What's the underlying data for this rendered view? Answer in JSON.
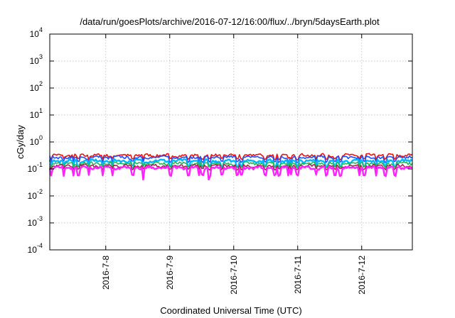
{
  "chart_data": {
    "type": "line",
    "title": "/data/run/goesPlots/archive/2016-07-12/16:00/flux/../bryn/5daysEarth.plot",
    "xlabel": "Coordinated Universal Time (UTC)",
    "ylabel": "cGy/day",
    "yscale": "log",
    "ylim": [
      0.0001,
      10000
    ],
    "y_ticks": [
      {
        "base": "10",
        "exp": "-4",
        "value": 0.0001
      },
      {
        "base": "10",
        "exp": "-3",
        "value": 0.001
      },
      {
        "base": "10",
        "exp": "-2",
        "value": 0.01
      },
      {
        "base": "10",
        "exp": "-1",
        "value": 0.1
      },
      {
        "base": "10",
        "exp": "0",
        "value": 1
      },
      {
        "base": "10",
        "exp": "1",
        "value": 10
      },
      {
        "base": "10",
        "exp": "2",
        "value": 100
      },
      {
        "base": "10",
        "exp": "3",
        "value": 1000
      },
      {
        "base": "10",
        "exp": "4",
        "value": 10000
      }
    ],
    "xlim": [
      "2016-07-07 03:00",
      "2016-07-12 19:00"
    ],
    "x_ticks": [
      {
        "label": "2016-7-8",
        "value": "2016-07-08"
      },
      {
        "label": "2016-7-9",
        "value": "2016-07-09"
      },
      {
        "label": "2016-7-10",
        "value": "2016-07-10"
      },
      {
        "label": "2016-7-11",
        "value": "2016-07-11"
      },
      {
        "label": "2016-7-12",
        "value": "2016-07-12"
      }
    ],
    "grid": true,
    "series": [
      {
        "color": "#ee1111",
        "base": 0.32,
        "dip": 0.24
      },
      {
        "color": "#1a4fff",
        "base": 0.27,
        "dip": 0.19
      },
      {
        "color": "#00b8ff",
        "base": 0.2,
        "dip": 0.13
      },
      {
        "color": "#22bb55",
        "base": 0.16,
        "dip": 0.12
      },
      {
        "color": "#aa2255",
        "base": 0.13,
        "dip": 0.1
      },
      {
        "color": "#ff22ff",
        "base": 0.11,
        "dip": 0.06
      }
    ],
    "dip_days": [
      0.02,
      0.22,
      0.37,
      0.45,
      0.61,
      0.83,
      0.98,
      1.3,
      1.46,
      1.88,
      2.17,
      2.33,
      2.39,
      2.49,
      2.69,
      2.93,
      3.0,
      3.37,
      3.52,
      3.58,
      3.73,
      3.77,
      3.87,
      4.16,
      4.32,
      4.45,
      4.55,
      4.84,
      4.92,
      5.1,
      5.24,
      5.4
    ],
    "deep_dip_days": [
      1.46,
      2.49
    ]
  }
}
